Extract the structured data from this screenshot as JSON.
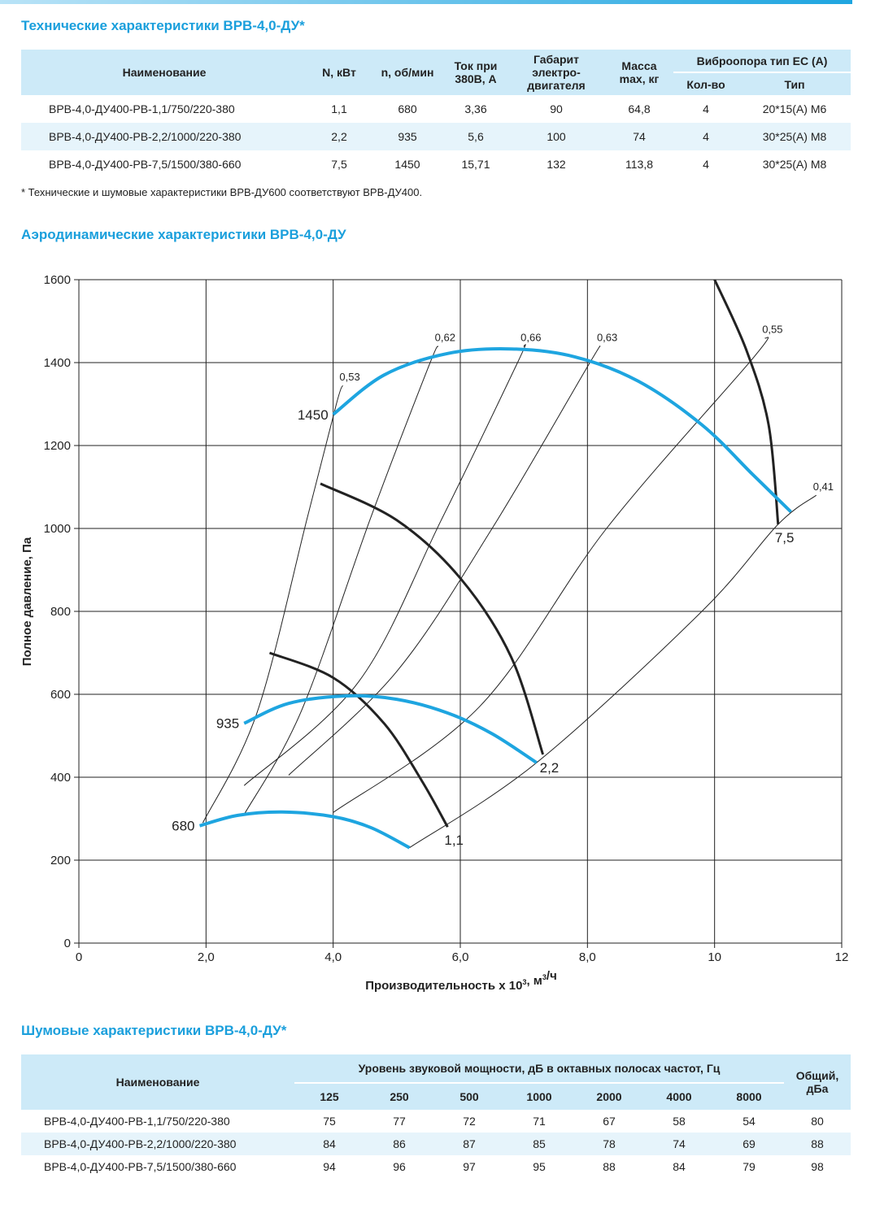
{
  "tech": {
    "title": "Технические характеристики ВРВ-4,0-ДУ*",
    "headers": {
      "name": "Наименование",
      "power": "N, кВт",
      "rpm": "n, об/мин",
      "current_l1": "Ток при",
      "current_l2": "380В, А",
      "frame_l1": "Габарит",
      "frame_l2": "электро-",
      "frame_l3": "двигателя",
      "mass_l1": "Масса",
      "mass_l2": "max, кг",
      "vibro": "Виброопора тип ЕС (А)",
      "vibro_qty": "Кол-во",
      "vibro_type": "Тип"
    },
    "rows": [
      {
        "name": "ВРВ-4,0-ДУ400-РВ-1,1/750/220-380",
        "power": "1,1",
        "rpm": "680",
        "current": "3,36",
        "frame": "90",
        "mass": "64,8",
        "qty": "4",
        "type": "20*15(А) М6"
      },
      {
        "name": "ВРВ-4,0-ДУ400-РВ-2,2/1000/220-380",
        "power": "2,2",
        "rpm": "935",
        "current": "5,6",
        "frame": "100",
        "mass": "74",
        "qty": "4",
        "type": "30*25(А) М8"
      },
      {
        "name": "ВРВ-4,0-ДУ400-РВ-7,5/1500/380-660",
        "power": "7,5",
        "rpm": "1450",
        "current": "15,71",
        "frame": "132",
        "mass": "113,8",
        "qty": "4",
        "type": "30*25(А) М8"
      }
    ],
    "footnote": "* Технические и шумовые характеристики ВРВ-ДУ600 соответствуют ВРВ-ДУ400."
  },
  "aero": {
    "title": "Аэродинамические характеристики ВРВ-4,0-ДУ"
  },
  "chart_data": {
    "type": "line",
    "xlabel": "Производительность x 10³, м³/ч",
    "ylabel": "Полное давление, Па",
    "xlim": [
      0,
      12
    ],
    "ylim": [
      0,
      1600
    ],
    "x_ticks": [
      0,
      2,
      4,
      6,
      8,
      10,
      12
    ],
    "x_tick_labels": [
      "0",
      "2,0",
      "4,0",
      "6,0",
      "8,0",
      "10",
      "12"
    ],
    "y_ticks": [
      0,
      200,
      400,
      600,
      800,
      1000,
      1200,
      1400,
      1600
    ],
    "y_tick_labels": [
      "0",
      "200",
      "400",
      "600",
      "800",
      "1000",
      "1200",
      "1400",
      "1600"
    ],
    "grid": true,
    "colors": {
      "speed": "#1ea5e0",
      "power": "#222222",
      "efficiency": "#222222"
    },
    "speed_curves": [
      {
        "label": "680",
        "points": [
          [
            1.9,
            283
          ],
          [
            2.5,
            308
          ],
          [
            3.2,
            316
          ],
          [
            4.0,
            305
          ],
          [
            4.6,
            278
          ],
          [
            5.2,
            230
          ]
        ]
      },
      {
        "label": "935",
        "points": [
          [
            2.6,
            530
          ],
          [
            3.3,
            578
          ],
          [
            4.2,
            596
          ],
          [
            5.0,
            588
          ],
          [
            5.8,
            555
          ],
          [
            6.5,
            505
          ],
          [
            7.2,
            435
          ]
        ]
      },
      {
        "label": "1450",
        "points": [
          [
            4.0,
            1275
          ],
          [
            4.8,
            1370
          ],
          [
            5.8,
            1422
          ],
          [
            6.8,
            1433
          ],
          [
            7.8,
            1414
          ],
          [
            8.8,
            1355
          ],
          [
            9.8,
            1250
          ],
          [
            10.6,
            1130
          ],
          [
            11.2,
            1040
          ]
        ]
      }
    ],
    "power_curves": [
      {
        "label": "1,1",
        "points": [
          [
            3.0,
            700
          ],
          [
            4.0,
            640
          ],
          [
            4.8,
            530
          ],
          [
            5.4,
            390
          ],
          [
            5.8,
            280
          ]
        ]
      },
      {
        "label": "2,2",
        "points": [
          [
            3.8,
            1108
          ],
          [
            5.0,
            1020
          ],
          [
            6.0,
            880
          ],
          [
            6.8,
            690
          ],
          [
            7.3,
            455
          ]
        ]
      },
      {
        "label": "7,5",
        "points": [
          [
            10.0,
            1600
          ],
          [
            10.5,
            1430
          ],
          [
            10.85,
            1250
          ],
          [
            11.0,
            1010
          ]
        ]
      }
    ],
    "efficiency_lines": [
      {
        "label": "0,53",
        "points": [
          [
            1.95,
            290
          ],
          [
            2.8,
            555
          ],
          [
            3.6,
            1030
          ],
          [
            4.05,
            1300
          ],
          [
            4.15,
            1345
          ]
        ]
      },
      {
        "label": "0,62",
        "points": [
          [
            2.6,
            310
          ],
          [
            3.5,
            560
          ],
          [
            4.6,
            1030
          ],
          [
            5.5,
            1390
          ],
          [
            5.65,
            1440
          ]
        ]
      },
      {
        "label": "0,66",
        "points": [
          [
            2.6,
            380
          ],
          [
            4.4,
            630
          ],
          [
            5.7,
            1020
          ],
          [
            6.9,
            1400
          ],
          [
            7.0,
            1440
          ]
        ]
      },
      {
        "label": "0,63",
        "points": [
          [
            3.3,
            405
          ],
          [
            5.0,
            655
          ],
          [
            6.5,
            1000
          ],
          [
            8.0,
            1390
          ],
          [
            8.2,
            1440
          ]
        ]
      },
      {
        "label": "0,55",
        "points": [
          [
            4.0,
            315
          ],
          [
            6.3,
            570
          ],
          [
            8.3,
            1000
          ],
          [
            10.6,
            1410
          ],
          [
            10.8,
            1460
          ]
        ]
      },
      {
        "label": "0,41",
        "points": [
          [
            5.2,
            230
          ],
          [
            7.2,
            435
          ],
          [
            9.8,
            800
          ],
          [
            11.0,
            1010
          ],
          [
            11.6,
            1080
          ]
        ]
      }
    ]
  },
  "noise": {
    "title": "Шумовые характеристики ВРВ-4,0-ДУ*",
    "headers": {
      "name": "Наименование",
      "group": "Уровень звуковой мощности, дБ в октавных полосах частот, Гц",
      "total_l1": "Общий,",
      "total_l2": "дБа",
      "f125": "125",
      "f250": "250",
      "f500": "500",
      "f1000": "1000",
      "f2000": "2000",
      "f4000": "4000",
      "f8000": "8000"
    },
    "rows": [
      {
        "name": "ВРВ-4,0-ДУ400-РВ-1,1/750/220-380",
        "f125": "75",
        "f250": "77",
        "f500": "72",
        "f1000": "71",
        "f2000": "67",
        "f4000": "58",
        "f8000": "54",
        "total": "80"
      },
      {
        "name": "ВРВ-4,0-ДУ400-РВ-2,2/1000/220-380",
        "f125": "84",
        "f250": "86",
        "f500": "87",
        "f1000": "85",
        "f2000": "78",
        "f4000": "74",
        "f8000": "69",
        "total": "88"
      },
      {
        "name": "ВРВ-4,0-ДУ400-РВ-7,5/1500/380-660",
        "f125": "94",
        "f250": "96",
        "f500": "97",
        "f1000": "95",
        "f2000": "88",
        "f4000": "84",
        "f8000": "79",
        "total": "98"
      }
    ]
  }
}
